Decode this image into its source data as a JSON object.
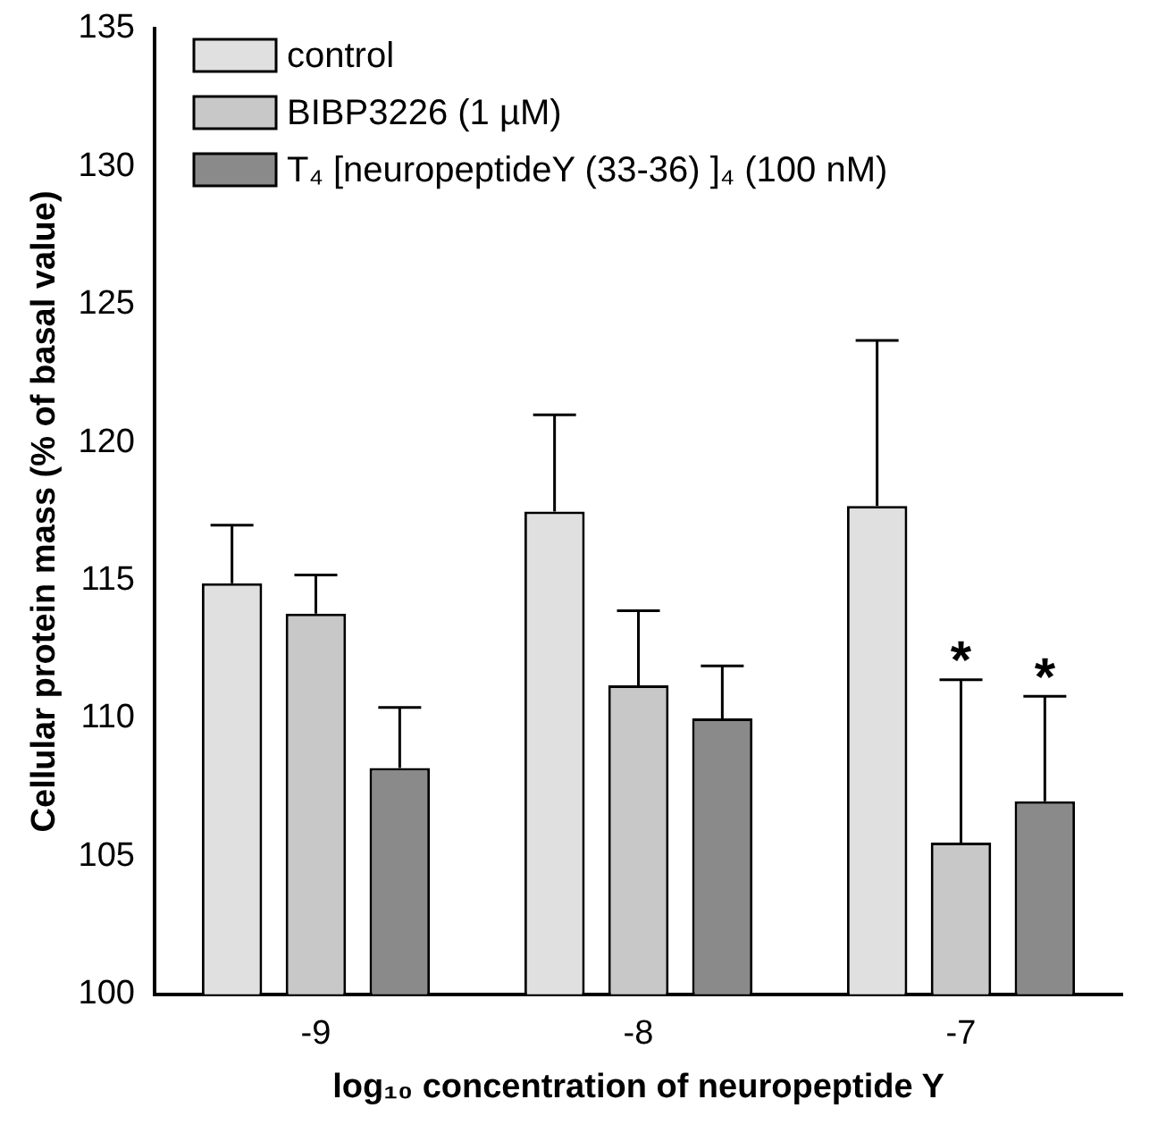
{
  "chart_data": {
    "type": "bar",
    "xlabel": "log₁₀ concentration of neuropeptide Y",
    "ylabel": "Cellular protein mass (% of basal value)",
    "categories": [
      "-9",
      "-8",
      "-7"
    ],
    "series": [
      {
        "name": "control",
        "color": "#e0e0e0",
        "values": [
          114.9,
          117.5,
          117.7
        ],
        "errors": [
          [
            114.9,
            117.0
          ],
          [
            117.5,
            121.0
          ],
          [
            117.7,
            123.7
          ]
        ]
      },
      {
        "name": "BIBP3226 (1 µM)",
        "color": "#c8c8c8",
        "values": [
          113.8,
          111.2,
          105.5
        ],
        "errors": [
          [
            113.8,
            115.2
          ],
          [
            111.2,
            113.9
          ],
          [
            105.5,
            111.4
          ]
        ]
      },
      {
        "name": "T₄ [neuropeptideY (33-36) ]₄ (100 nM)",
        "color": "#8a8a8a",
        "values": [
          108.2,
          110.0,
          107.0
        ],
        "errors": [
          [
            108.2,
            110.4
          ],
          [
            110.0,
            111.9
          ],
          [
            107.0,
            110.8
          ]
        ]
      }
    ],
    "ylim": [
      100,
      135
    ],
    "yticks": [
      100,
      105,
      110,
      115,
      120,
      125,
      130,
      135
    ],
    "grid": false,
    "legend": "top left",
    "annotations": [
      {
        "text": "*",
        "x": "-7",
        "y": 111.4
      },
      {
        "text": "*",
        "x": "-7",
        "y": 110.8
      }
    ]
  }
}
